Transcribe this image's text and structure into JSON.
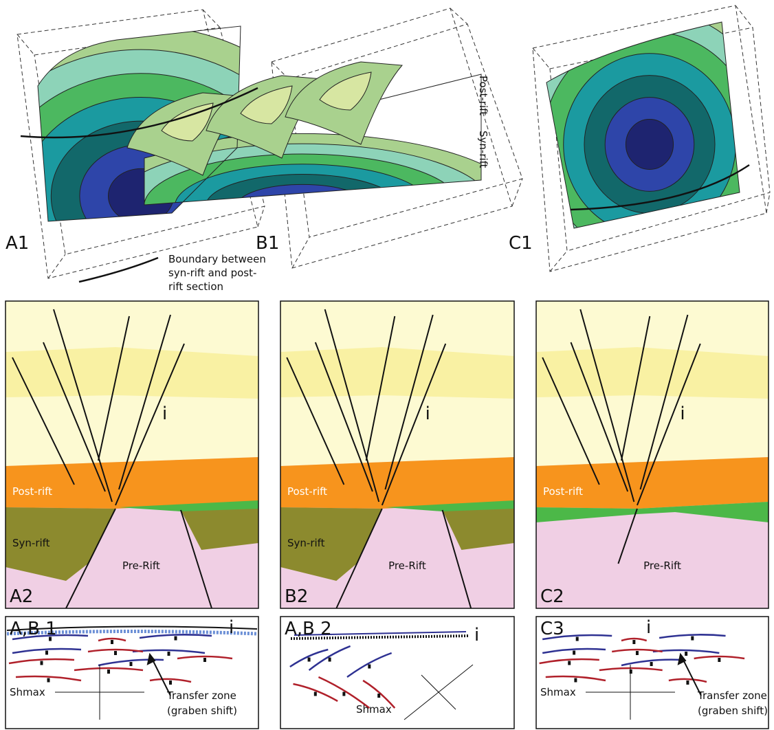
{
  "top_panels": [
    {
      "label": "A1"
    },
    {
      "label": "B1",
      "post_rift": "Post-rift",
      "syn_rift": "Syn-rift"
    },
    {
      "label": "C1"
    }
  ],
  "legend": {
    "lines": [
      "Boundary between",
      "syn-rift and post-",
      "rift section"
    ]
  },
  "sections": [
    {
      "label": "A2",
      "fault": "i",
      "post_rift": "Post-rift",
      "syn_rift": "Syn-rift",
      "pre_rift": "Pre-Rift"
    },
    {
      "label": "B2",
      "fault": "i",
      "post_rift": "Post-rift",
      "syn_rift": "Syn-rift",
      "pre_rift": "Pre-Rift"
    },
    {
      "label": "C2",
      "fault": "i",
      "post_rift": "Post-rift",
      "pre_rift": "Pre-Rift"
    }
  ],
  "maps": [
    {
      "label": "A,B 1",
      "fault": "i",
      "stress": "Shmax",
      "note": [
        "Transfer zone",
        "(graben shift)"
      ]
    },
    {
      "label": "A,B 2",
      "fault": "i",
      "stress": "Shmax"
    },
    {
      "label": "C3",
      "fault": "i",
      "stress": "Shmax",
      "note": [
        "Transfer zone",
        "(graben shift)"
      ]
    }
  ]
}
